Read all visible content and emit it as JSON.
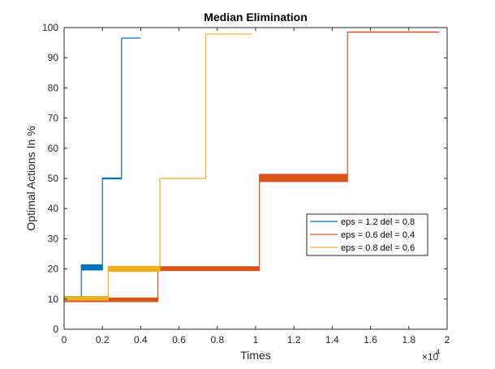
{
  "chart_data": {
    "type": "line",
    "title": "Median Elimination",
    "xlabel": "Times",
    "ylabel": "Optimal Actions In %",
    "x_multiplier_base": "×10",
    "x_multiplier_exp": "4",
    "xlim": [
      0,
      2
    ],
    "ylim": [
      0,
      100
    ],
    "xticks": [
      "0",
      "0.2",
      "0.4",
      "0.6",
      "0.8",
      "1",
      "1.2",
      "1.4",
      "1.6",
      "1.8",
      "2"
    ],
    "yticks": [
      "0",
      "10",
      "20",
      "30",
      "40",
      "50",
      "60",
      "70",
      "80",
      "90",
      "100"
    ],
    "grid": false,
    "legend_position": "right",
    "series": [
      {
        "name": "eps = 1.2 del = 0.8",
        "color": "#0072BD",
        "steps": [
          {
            "x0": 0.0,
            "x1": 0.09,
            "ylow": 9.0,
            "yhigh": 11.0
          },
          {
            "x0": 0.09,
            "x1": 0.2,
            "ylow": 19.5,
            "yhigh": 21.5
          },
          {
            "x0": 0.2,
            "x1": 0.3,
            "ylow": 49.7,
            "yhigh": 50.3
          },
          {
            "x0": 0.3,
            "x1": 0.4,
            "ylow": 96.5,
            "yhigh": 96.5
          }
        ]
      },
      {
        "name": "eps = 0.6 del = 0.4",
        "color": "#D95319",
        "steps": [
          {
            "x0": 0.0,
            "x1": 0.49,
            "ylow": 9.0,
            "yhigh": 10.5
          },
          {
            "x0": 0.49,
            "x1": 1.02,
            "ylow": 19.3,
            "yhigh": 20.9
          },
          {
            "x0": 1.02,
            "x1": 1.48,
            "ylow": 48.8,
            "yhigh": 51.5
          },
          {
            "x0": 1.48,
            "x1": 1.96,
            "ylow": 98.3,
            "yhigh": 98.7
          }
        ]
      },
      {
        "name": "eps = 0.8 del = 0.6",
        "color": "#EDB120",
        "steps": [
          {
            "x0": 0.0,
            "x1": 0.23,
            "ylow": 9.5,
            "yhigh": 11.0
          },
          {
            "x0": 0.23,
            "x1": 0.5,
            "ylow": 19.0,
            "yhigh": 21.0
          },
          {
            "x0": 0.5,
            "x1": 0.74,
            "ylow": 50.0,
            "yhigh": 50.0
          },
          {
            "x0": 0.74,
            "x1": 0.98,
            "ylow": 97.7,
            "yhigh": 98.0
          }
        ]
      }
    ]
  }
}
